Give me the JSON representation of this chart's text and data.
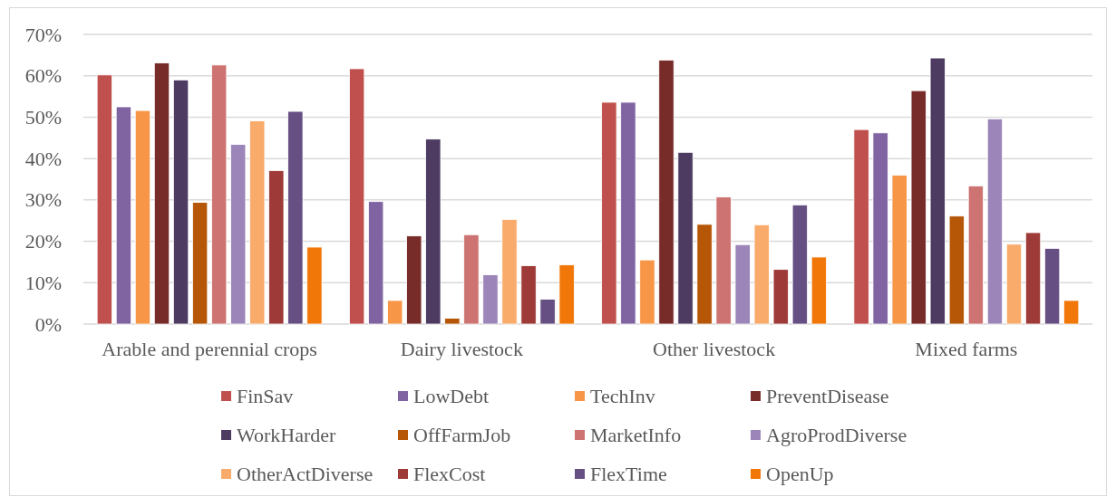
{
  "chart_data": {
    "type": "bar",
    "categories": [
      "Arable and perennial crops",
      "Dairy livestock",
      "Other livestock",
      "Mixed farms"
    ],
    "series": [
      {
        "name": "FinSav",
        "color": "#c0504d",
        "values": [
          60.2,
          61.7,
          53.6,
          47.0
        ]
      },
      {
        "name": "LowDebt",
        "color": "#8064a2",
        "values": [
          52.5,
          29.6,
          53.6,
          46.2
        ]
      },
      {
        "name": "TechInv",
        "color": "#f79646",
        "values": [
          51.6,
          5.7,
          15.5,
          36.0
        ]
      },
      {
        "name": "PreventDisease",
        "color": "#772c2a",
        "values": [
          63.1,
          21.3,
          63.8,
          56.4
        ]
      },
      {
        "name": "WorkHarder",
        "color": "#4d3b62",
        "values": [
          59.0,
          44.7,
          41.5,
          64.3
        ]
      },
      {
        "name": "OffFarmJob",
        "color": "#b65708",
        "values": [
          29.4,
          1.4,
          24.1,
          26.1
        ]
      },
      {
        "name": "MarketInfo",
        "color": "#cd7371",
        "values": [
          62.6,
          21.6,
          30.7,
          33.4
        ]
      },
      {
        "name": "AgroProdDiverse",
        "color": "#9c85b8",
        "values": [
          43.4,
          11.9,
          19.2,
          49.6
        ]
      },
      {
        "name": "OtherActDiverse",
        "color": "#f9ab6b",
        "values": [
          49.1,
          25.3,
          24.0,
          19.3
        ]
      },
      {
        "name": "FlexCost",
        "color": "#9e3b39",
        "values": [
          37.1,
          14.1,
          13.2,
          22.1
        ]
      },
      {
        "name": "FlexTime",
        "color": "#664f83",
        "values": [
          51.4,
          6.0,
          28.8,
          18.3
        ]
      },
      {
        "name": "OpenUp",
        "color": "#f27709",
        "values": [
          18.6,
          14.3,
          16.2,
          5.7
        ]
      }
    ],
    "ylim": [
      0,
      70
    ],
    "yticks": [
      {
        "value": 0,
        "label": "0%"
      },
      {
        "value": 10,
        "label": "10%"
      },
      {
        "value": 20,
        "label": "20%"
      },
      {
        "value": 30,
        "label": "30%"
      },
      {
        "value": 40,
        "label": "40%"
      },
      {
        "value": 50,
        "label": "50%"
      },
      {
        "value": 60,
        "label": "60%"
      },
      {
        "value": 70,
        "label": "70%"
      }
    ],
    "grid": "y",
    "legend": "bottom"
  }
}
